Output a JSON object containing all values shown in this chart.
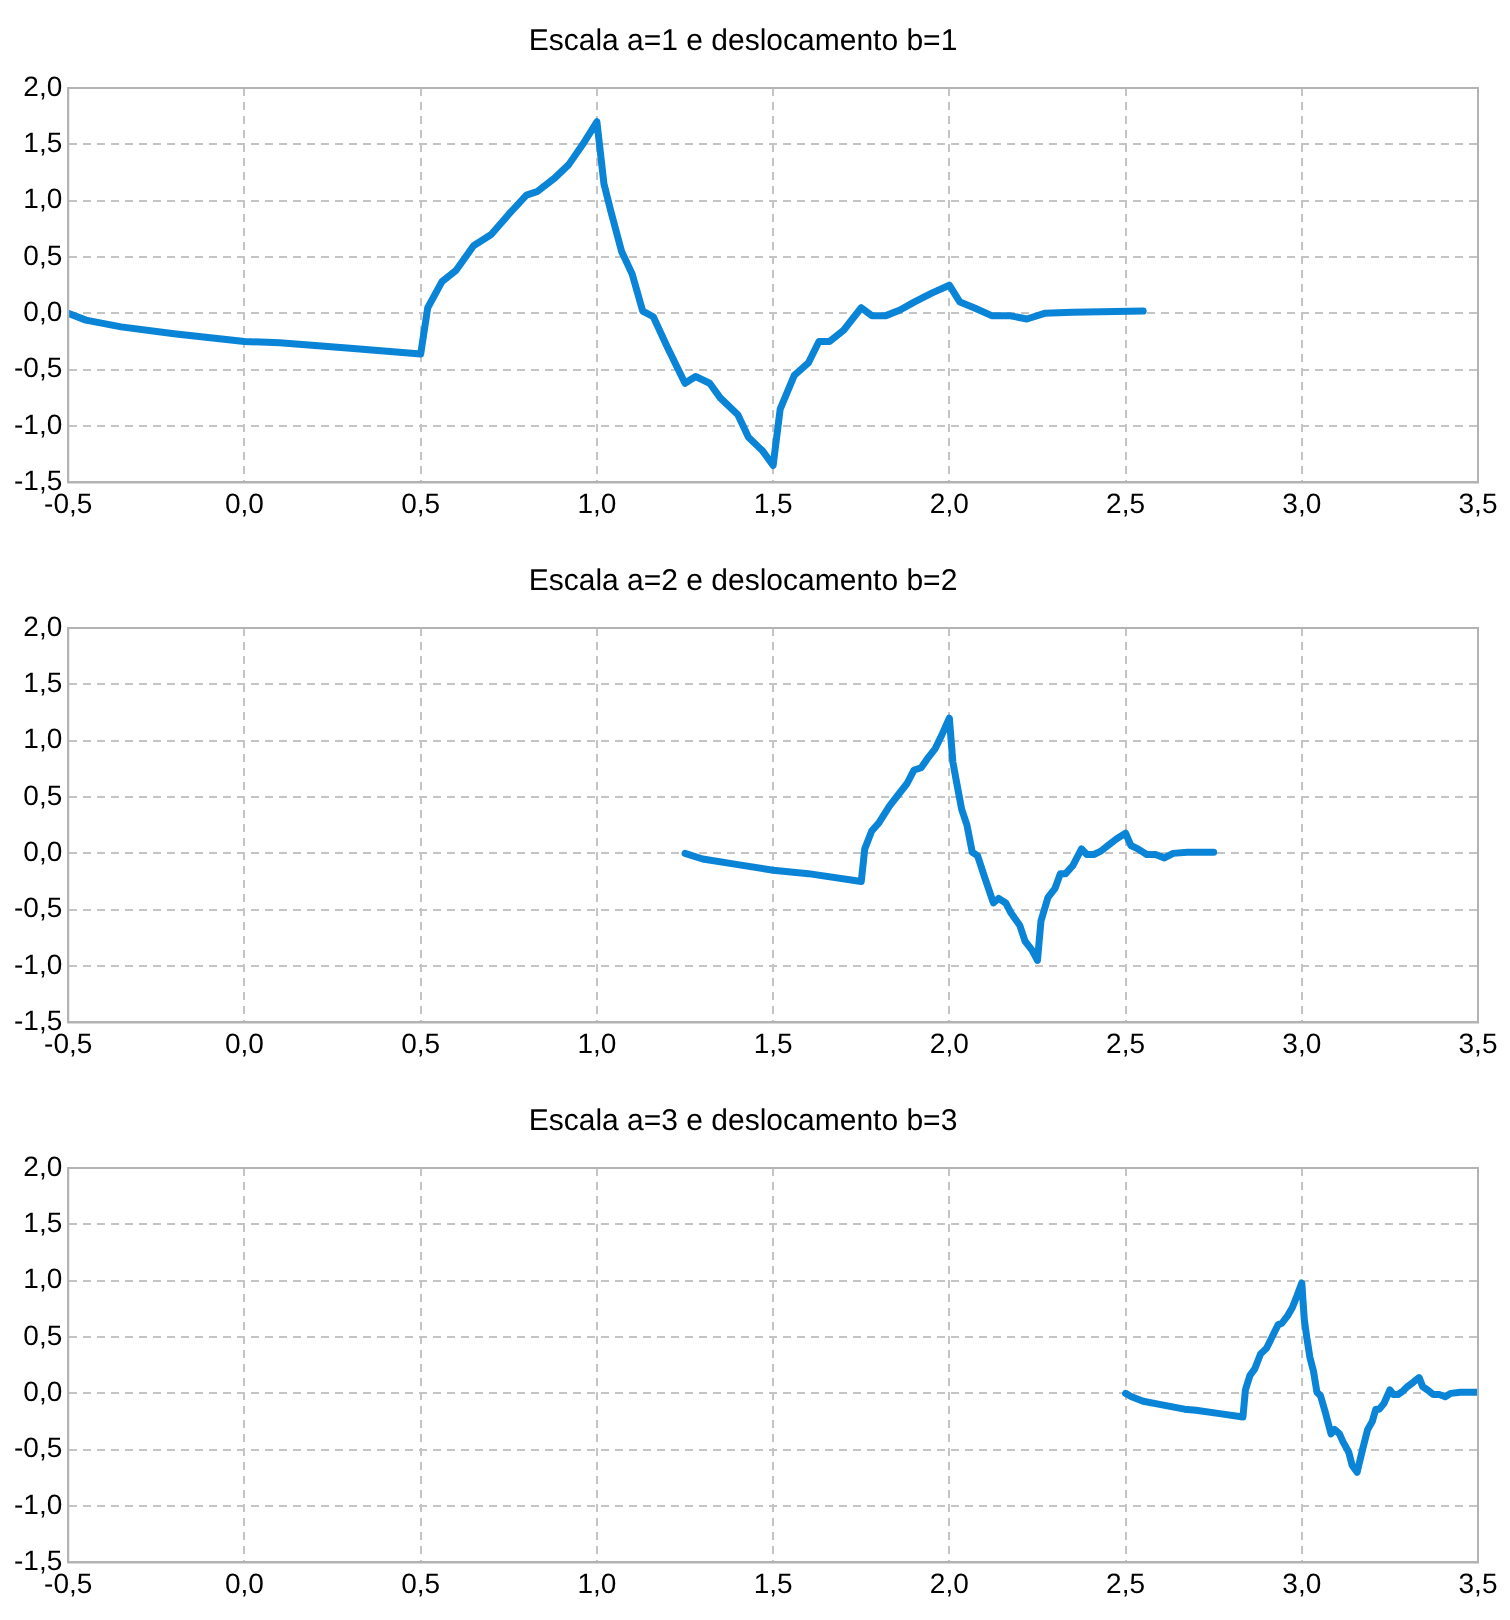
{
  "chart_data": [
    {
      "type": "line",
      "title": "Escala a=1 e deslocamento b=1",
      "grid": true,
      "legend": false,
      "marker": "none",
      "line_style": "solid",
      "xlim": [
        -0.5,
        3.5
      ],
      "ylim": [
        -1.5,
        2.0
      ],
      "xticks": [
        {
          "value": -0.5,
          "label": "-0,5"
        },
        {
          "value": 0,
          "label": "0,0"
        },
        {
          "value": 0.5,
          "label": "0,5"
        },
        {
          "value": 1,
          "label": "1,0"
        },
        {
          "value": 1.5,
          "label": "1,5"
        },
        {
          "value": 2,
          "label": "2,0"
        },
        {
          "value": 2.5,
          "label": "2,5"
        },
        {
          "value": 3,
          "label": "3,0"
        },
        {
          "value": 3.5,
          "label": "3,5"
        }
      ],
      "yticks": [
        {
          "value": -1.5,
          "label": "-1,5"
        },
        {
          "value": -1,
          "label": "-1,0"
        },
        {
          "value": -0.5,
          "label": "-0,5"
        },
        {
          "value": 0,
          "label": "0,0"
        },
        {
          "value": 0.5,
          "label": "0,5"
        },
        {
          "value": 1,
          "label": "1,0"
        },
        {
          "value": 1.5,
          "label": "1,5"
        },
        {
          "value": 2,
          "label": "2,0"
        }
      ],
      "series": [
        {
          "color": "#0a84d6",
          "x": [
            -0.5,
            -0.45,
            -0.35,
            -0.2,
            0,
            0.1,
            0.3,
            0.5,
            0.52,
            0.56,
            0.6,
            0.65,
            0.7,
            0.75,
            0.8,
            0.83,
            0.88,
            0.92,
            0.96,
            1.0,
            1.02,
            1.04,
            1.07,
            1.1,
            1.13,
            1.16,
            1.2,
            1.25,
            1.28,
            1.32,
            1.35,
            1.4,
            1.43,
            1.47,
            1.5,
            1.52,
            1.56,
            1.6,
            1.63,
            1.66,
            1.7,
            1.75,
            1.78,
            1.82,
            1.86,
            1.9,
            1.95,
            2.0,
            2.03,
            2.07,
            2.12,
            2.17,
            2.22,
            2.27,
            2.35,
            2.55
          ],
          "values": [
            0,
            -0.06,
            -0.12,
            -0.18,
            -0.25,
            -0.26,
            -0.31,
            -0.36,
            0.05,
            0.28,
            0.38,
            0.6,
            0.7,
            0.88,
            1.05,
            1.08,
            1.2,
            1.32,
            1.5,
            1.7,
            1.15,
            0.9,
            0.55,
            0.35,
            0.02,
            -0.03,
            -0.3,
            -0.62,
            -0.56,
            -0.62,
            -0.75,
            -0.9,
            -1.1,
            -1.22,
            -1.35,
            -0.85,
            -0.55,
            -0.44,
            -0.25,
            -0.25,
            -0.15,
            0.05,
            -0.02,
            -0.02,
            0.03,
            0.1,
            0.18,
            0.25,
            0.1,
            0.05,
            -0.02,
            -0.02,
            -0.05,
            0,
            0.01,
            0.02
          ]
        }
      ]
    },
    {
      "type": "line",
      "title": "Escala a=2 e deslocamento b=2",
      "grid": true,
      "legend": false,
      "marker": "none",
      "line_style": "solid",
      "xlim": [
        -0.5,
        3.5
      ],
      "ylim": [
        -1.5,
        2.0
      ],
      "xticks": [
        {
          "value": -0.5,
          "label": "-0,5"
        },
        {
          "value": 0,
          "label": "0,0"
        },
        {
          "value": 0.5,
          "label": "0,5"
        },
        {
          "value": 1,
          "label": "1,0"
        },
        {
          "value": 1.5,
          "label": "1,5"
        },
        {
          "value": 2,
          "label": "2,0"
        },
        {
          "value": 2.5,
          "label": "2,5"
        },
        {
          "value": 3,
          "label": "3,0"
        },
        {
          "value": 3.5,
          "label": "3,5"
        }
      ],
      "yticks": [
        {
          "value": -1.5,
          "label": "-1,5"
        },
        {
          "value": -1,
          "label": "-1,0"
        },
        {
          "value": -0.5,
          "label": "-0,5"
        },
        {
          "value": 0,
          "label": "0,0"
        },
        {
          "value": 0.5,
          "label": "0,5"
        },
        {
          "value": 1,
          "label": "1,0"
        },
        {
          "value": 1.5,
          "label": "1,5"
        },
        {
          "value": 2,
          "label": "2,0"
        }
      ],
      "series": [
        {
          "color": "#0a84d6",
          "x": [
            1.25,
            1.3,
            1.4,
            1.5,
            1.6,
            1.75,
            1.76,
            1.78,
            1.8,
            1.83,
            1.85,
            1.88,
            1.9,
            1.92,
            1.94,
            1.96,
            1.98,
            2.0,
            2.01,
            2.02,
            2.035,
            2.05,
            2.065,
            2.08,
            2.1,
            2.125,
            2.14,
            2.16,
            2.175,
            2.2,
            2.215,
            2.235,
            2.25,
            2.26,
            2.28,
            2.3,
            2.315,
            2.33,
            2.35,
            2.375,
            2.39,
            2.41,
            2.43,
            2.45,
            2.475,
            2.5,
            2.515,
            2.535,
            2.56,
            2.585,
            2.61,
            2.635,
            2.675,
            2.75
          ],
          "values": [
            0,
            -0.05,
            -0.1,
            -0.15,
            -0.18,
            -0.25,
            0.04,
            0.2,
            0.27,
            0.42,
            0.5,
            0.62,
            0.74,
            0.76,
            0.85,
            0.93,
            1.06,
            1.2,
            0.81,
            0.64,
            0.39,
            0.25,
            0.01,
            -0.02,
            -0.21,
            -0.44,
            -0.4,
            -0.44,
            -0.53,
            -0.64,
            -0.78,
            -0.86,
            -0.95,
            -0.6,
            -0.39,
            -0.31,
            -0.18,
            -0.18,
            -0.11,
            0.04,
            -0.01,
            -0.01,
            0.02,
            0.07,
            0.13,
            0.18,
            0.07,
            0.04,
            -0.01,
            -0.01,
            -0.04,
            0,
            0.01,
            0.01
          ]
        }
      ]
    },
    {
      "type": "line",
      "title": "Escala a=3 e deslocamento b=3",
      "grid": true,
      "legend": false,
      "marker": "none",
      "line_style": "solid",
      "xlim": [
        -0.5,
        3.5
      ],
      "ylim": [
        -1.5,
        2.0
      ],
      "xticks": [
        {
          "value": -0.5,
          "label": "-0,5"
        },
        {
          "value": 0,
          "label": "0,0"
        },
        {
          "value": 0.5,
          "label": "0,5"
        },
        {
          "value": 1,
          "label": "1,0"
        },
        {
          "value": 1.5,
          "label": "1,5"
        },
        {
          "value": 2,
          "label": "2,0"
        },
        {
          "value": 2.5,
          "label": "2,5"
        },
        {
          "value": 3,
          "label": "3,0"
        },
        {
          "value": 3.5,
          "label": "3,5"
        }
      ],
      "yticks": [
        {
          "value": -1.5,
          "label": "-1,5"
        },
        {
          "value": -1,
          "label": "-1,0"
        },
        {
          "value": -0.5,
          "label": "-0,5"
        },
        {
          "value": 0,
          "label": "0,0"
        },
        {
          "value": 0.5,
          "label": "0,5"
        },
        {
          "value": 1,
          "label": "1,0"
        },
        {
          "value": 1.5,
          "label": "1,5"
        },
        {
          "value": 2,
          "label": "2,0"
        }
      ],
      "series": [
        {
          "color": "#0a84d6",
          "x": [
            2.5,
            2.517,
            2.55,
            2.6,
            2.667,
            2.7,
            2.767,
            2.833,
            2.84,
            2.853,
            2.867,
            2.883,
            2.9,
            2.917,
            2.933,
            2.943,
            2.96,
            2.973,
            2.987,
            3.0,
            3.007,
            3.013,
            3.023,
            3.033,
            3.043,
            3.053,
            3.067,
            3.083,
            3.093,
            3.107,
            3.117,
            3.133,
            3.143,
            3.157,
            3.173,
            3.187,
            3.2,
            3.21,
            3.22,
            3.233,
            3.25,
            3.26,
            3.273,
            3.287,
            3.3,
            3.317,
            3.333,
            3.343,
            3.357,
            3.373,
            3.39,
            3.407,
            3.423,
            3.45,
            3.5
          ],
          "values": [
            0,
            -0.03,
            -0.07,
            -0.1,
            -0.14,
            -0.15,
            -0.18,
            -0.21,
            0.03,
            0.16,
            0.22,
            0.35,
            0.4,
            0.51,
            0.61,
            0.62,
            0.69,
            0.76,
            0.87,
            0.98,
            0.66,
            0.52,
            0.32,
            0.2,
            0.01,
            -0.02,
            -0.17,
            -0.36,
            -0.32,
            -0.36,
            -0.43,
            -0.52,
            -0.64,
            -0.7,
            -0.49,
            -0.32,
            -0.25,
            -0.14,
            -0.14,
            -0.09,
            0.03,
            -0.01,
            -0.01,
            0.02,
            0.06,
            0.1,
            0.14,
            0.06,
            0.03,
            -0.01,
            -0.01,
            -0.03,
            0,
            0.01,
            0.01
          ]
        }
      ]
    }
  ]
}
